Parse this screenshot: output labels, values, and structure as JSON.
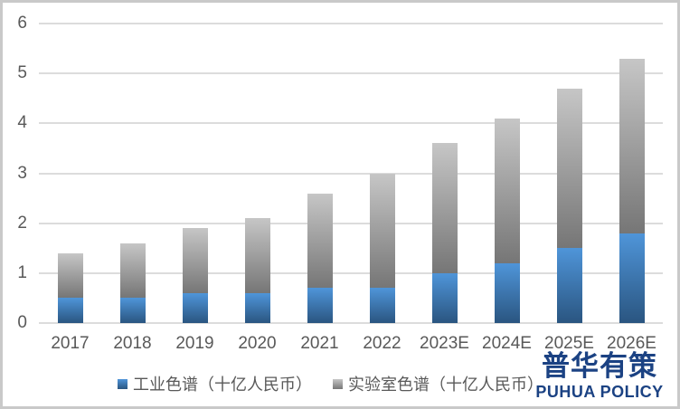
{
  "chart_data": {
    "type": "bar",
    "stacked": true,
    "categories": [
      "2017",
      "2018",
      "2019",
      "2020",
      "2021",
      "2022",
      "2023E",
      "2024E",
      "2025E",
      "2026E"
    ],
    "series": [
      {
        "name": "工业色谱（十亿人民币）",
        "values": [
          0.5,
          0.5,
          0.6,
          0.6,
          0.7,
          0.7,
          1.0,
          1.2,
          1.5,
          1.8
        ],
        "color_top": "#4f95d9",
        "color_bottom": "#2a5580"
      },
      {
        "name": "实验室色谱（十亿人民币）",
        "values": [
          0.9,
          1.1,
          1.3,
          1.5,
          1.9,
          2.3,
          2.6,
          2.9,
          3.2,
          3.5
        ],
        "color_top": "#c6c6c6",
        "color_bottom": "#767676"
      }
    ],
    "totals": [
      1.4,
      1.6,
      1.9,
      2.1,
      2.6,
      3.0,
      3.6,
      4.1,
      4.7,
      5.3
    ],
    "title": "",
    "xlabel": "",
    "ylabel": "",
    "ylim": [
      0,
      6
    ],
    "yticks": [
      0,
      1,
      2,
      3,
      4,
      5,
      6
    ],
    "grid": true,
    "legend_position": "bottom"
  },
  "colors": {
    "axis_text": "#595959",
    "gridline": "#dcdcdc",
    "background": "#ffffff",
    "frame_border": "#c9c9c9",
    "logo_blue": "#1b4283"
  },
  "logo": {
    "chinese": "普华有策",
    "english": "PUHUA POLICY"
  }
}
